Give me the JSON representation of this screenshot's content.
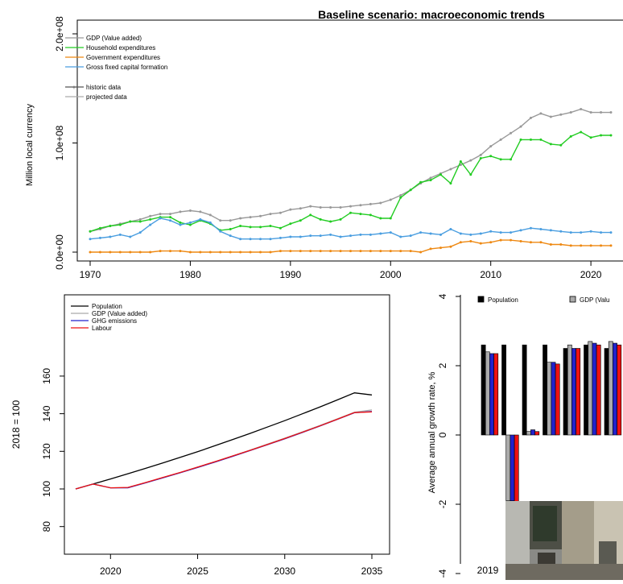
{
  "chart_data": [
    {
      "type": "line",
      "title": "Baseline scenario: macroeconomic trends",
      "xlabel": "",
      "ylabel": "Million local currency",
      "xlim": [
        1970,
        2022
      ],
      "ylim": [
        0,
        200000000
      ],
      "x_ticks": [
        "1970",
        "1980",
        "1990",
        "2000",
        "2010",
        "2020"
      ],
      "y_ticks": [
        "0.0e+00",
        "1.0e+08",
        "2.0e+08"
      ],
      "legend": {
        "series": [
          "GDP (Value added)",
          "Household expenditures",
          "Government expenditures",
          "Gross fixed capital formation"
        ],
        "styles": [
          "historic data",
          "projected data"
        ],
        "position": "top-left"
      },
      "colors": {
        "gdp": "#999999",
        "household": "#22cc22",
        "government": "#ee8811",
        "gfcf": "#4a9ee0"
      },
      "x": [
        1970,
        1971,
        1972,
        1973,
        1974,
        1975,
        1976,
        1977,
        1978,
        1979,
        1980,
        1981,
        1982,
        1983,
        1984,
        1985,
        1986,
        1987,
        1988,
        1989,
        1990,
        1991,
        1992,
        1993,
        1994,
        1995,
        1996,
        1997,
        1998,
        1999,
        2000,
        2001,
        2002,
        2003,
        2004,
        2005,
        2006,
        2007,
        2008,
        2009,
        2010,
        2011,
        2012,
        2013,
        2014,
        2015,
        2016,
        2017,
        2018,
        2019,
        2020,
        2021,
        2022
      ],
      "series": [
        {
          "name": "GDP (Value added)",
          "key": "gdp",
          "values": [
            19,
            21,
            24,
            26,
            28,
            30,
            33,
            35,
            35,
            37,
            38,
            37,
            34,
            29,
            29,
            31,
            32,
            33,
            35,
            36,
            39,
            40,
            42,
            41,
            41,
            41,
            42,
            43,
            44,
            45,
            48,
            52,
            57,
            63,
            68,
            72,
            76,
            80,
            84,
            89,
            97,
            103,
            109,
            115,
            123,
            127,
            124,
            126,
            128,
            131,
            128,
            128,
            128
          ]
        },
        {
          "name": "Household expenditures",
          "key": "household",
          "values": [
            19,
            22,
            24,
            25,
            28,
            28,
            30,
            32,
            32,
            27,
            25,
            29,
            26,
            20,
            21,
            24,
            23,
            23,
            24,
            22,
            26,
            29,
            34,
            30,
            28,
            30,
            36,
            35,
            34,
            31,
            31,
            50,
            57,
            64,
            66,
            71,
            63,
            83,
            71,
            86,
            88,
            85,
            85,
            103,
            103,
            103,
            99,
            98,
            106,
            110,
            105,
            107,
            107
          ]
        },
        {
          "name": "Government expenditures",
          "key": "government",
          "values": [
            0,
            0,
            0,
            0,
            0,
            0,
            0,
            1,
            1,
            1,
            0,
            0,
            0,
            0,
            0,
            0,
            0,
            0,
            0,
            1,
            1,
            1,
            1,
            1,
            1,
            1,
            1,
            1,
            1,
            1,
            1,
            1,
            1,
            0,
            3,
            4,
            5,
            9,
            10,
            8,
            9,
            11,
            11,
            10,
            9,
            9,
            7,
            7,
            6,
            6,
            6,
            6,
            6
          ]
        },
        {
          "name": "Gross fixed capital formation",
          "key": "gfcf",
          "values": [
            12,
            13,
            14,
            16,
            14,
            18,
            25,
            31,
            29,
            25,
            27,
            30,
            27,
            19,
            15,
            12,
            12,
            12,
            12,
            13,
            14,
            14,
            15,
            15,
            16,
            14,
            15,
            16,
            16,
            17,
            18,
            14,
            15,
            18,
            17,
            16,
            21,
            17,
            16,
            17,
            19,
            18,
            18,
            20,
            22,
            21,
            20,
            19,
            18,
            18,
            19,
            18,
            18
          ]
        }
      ],
      "units": "millions (1e+06)"
    },
    {
      "type": "line",
      "title": "",
      "xlabel": "",
      "ylabel": "2018 = 100",
      "xlim": [
        2018,
        2035
      ],
      "ylim": [
        77,
        162
      ],
      "x_ticks": [
        "2020",
        "2025",
        "2030",
        "2035"
      ],
      "y_ticks": [
        "80",
        "100",
        "120",
        "140",
        "160"
      ],
      "legend": {
        "position": "top-left"
      },
      "x": [
        2018,
        2019,
        2020,
        2021,
        2022,
        2023,
        2024,
        2025,
        2026,
        2027,
        2028,
        2029,
        2030,
        2031,
        2032,
        2033,
        2034,
        2035
      ],
      "series": [
        {
          "name": "Population",
          "color": "#000000",
          "values": [
            100,
            102.6,
            105.3,
            108.1,
            110.9,
            113.8,
            116.8,
            119.8,
            123.0,
            126.2,
            129.5,
            132.9,
            136.3,
            139.9,
            143.5,
            147.3,
            151.1,
            150.0
          ]
        },
        {
          "name": "GDP (Value added)",
          "color": "#aaaaaa",
          "values": [
            100,
            102.6,
            100.6,
            100.7,
            103.3,
            106.0,
            108.7,
            111.6,
            114.5,
            117.5,
            120.6,
            123.8,
            127.0,
            130.3,
            133.7,
            137.2,
            140.8,
            142.0
          ]
        },
        {
          "name": "GHG emissions",
          "color": "#2222cc",
          "values": [
            100,
            102.6,
            100.6,
            100.6,
            103.2,
            105.9,
            108.6,
            111.4,
            114.3,
            117.3,
            120.4,
            123.5,
            126.7,
            130.0,
            133.4,
            136.9,
            140.5,
            141.2
          ]
        },
        {
          "name": "Labour",
          "color": "#ee1111",
          "values": [
            100,
            102.6,
            100.6,
            100.8,
            103.4,
            106.1,
            108.8,
            111.6,
            114.5,
            117.5,
            120.5,
            123.6,
            126.8,
            130.1,
            133.5,
            137.0,
            140.6,
            141.0
          ]
        }
      ]
    },
    {
      "type": "bar",
      "title": "",
      "xlabel": "",
      "ylabel": "Average annual growth rate, %",
      "ylim": [
        -4,
        4
      ],
      "y_ticks": [
        "-4",
        "-2",
        "0",
        "2",
        "4"
      ],
      "x_ticks": [
        "2019"
      ],
      "legend": {
        "position": "top",
        "entries": [
          "Population",
          "GDP (Valu"
        ]
      },
      "groups": 7,
      "series": [
        {
          "name": "Population",
          "color": "#000000",
          "values": [
            2.6,
            2.6,
            2.6,
            2.6,
            2.5,
            2.6,
            2.5
          ]
        },
        {
          "name": "GDP (Value added)",
          "color": "#aaaaaa",
          "values": [
            2.4,
            -1.9,
            0.1,
            2.1,
            2.6,
            2.7,
            2.7
          ]
        },
        {
          "name": "GHG emissions",
          "color": "#2222cc",
          "values": [
            2.35,
            -1.9,
            0.15,
            2.1,
            2.5,
            2.65,
            2.65
          ]
        },
        {
          "name": "Labour",
          "color": "#ee1111",
          "values": [
            2.35,
            -2.05,
            0.1,
            2.05,
            2.5,
            2.6,
            2.6
          ]
        }
      ]
    }
  ]
}
